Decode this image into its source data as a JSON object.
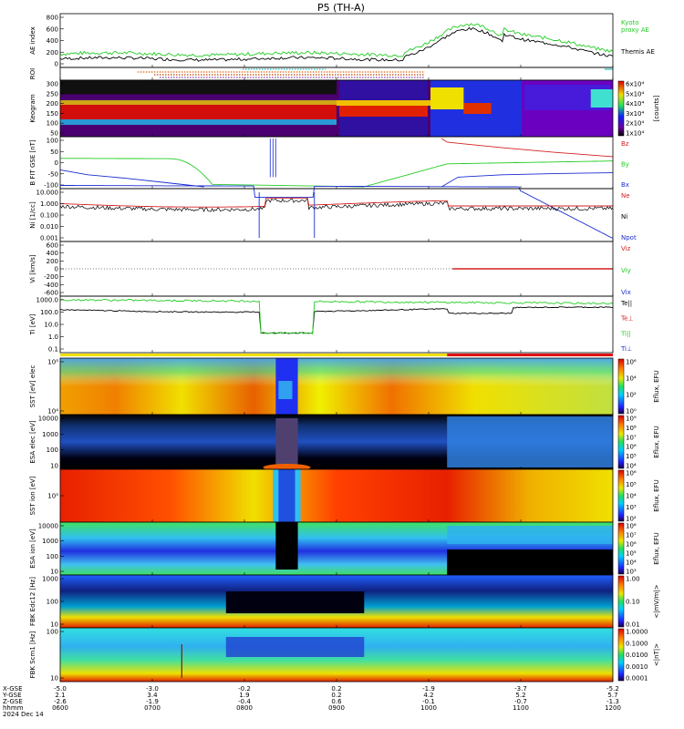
{
  "title": "P5 (TH-A)",
  "chart_data": {
    "type": "line",
    "time_axis": {
      "ticks": [
        "0600",
        "0700",
        "0800",
        "0900",
        "1000",
        "1100",
        "1200"
      ],
      "date": "2024 Dec 14",
      "rows": [
        {
          "label": "X-GSE",
          "values": [
            "-5.0",
            "-3.0",
            "-0.2",
            "0.2",
            "-1.9",
            "-3.7",
            "-5.2"
          ]
        },
        {
          "label": "Y-GSE",
          "values": [
            "2.1",
            "3.4",
            "1.9",
            "0.2",
            "4.2",
            "5.2",
            "5.7"
          ]
        },
        {
          "label": "Z-GSE",
          "values": [
            "-2.6",
            "-1.9",
            "-0.4",
            "0.6",
            "-0.1",
            "-0.7",
            "-1.3"
          ]
        },
        {
          "label": "hhmm",
          "values": [
            "0600",
            "0700",
            "0800",
            "0900",
            "1000",
            "1100",
            "1200"
          ]
        }
      ]
    },
    "panels": [
      {
        "id": "ae",
        "ylabel": "AE index",
        "yticks": [
          "0",
          "200",
          "400",
          "600",
          "800"
        ],
        "series": [
          {
            "name": "Kyoto proxy AE",
            "color": "#22cc22"
          },
          {
            "name": "Themis AE",
            "color": "#000000"
          }
        ]
      },
      {
        "id": "roi",
        "ylabel": "ROI"
      },
      {
        "id": "keogram",
        "ylabel": "Keogram",
        "yticks": [
          "50",
          "100",
          "150",
          "200",
          "250",
          "300"
        ],
        "colorbar": {
          "label": "[counts]",
          "ticks": [
            "1x10⁴",
            "2x10⁴",
            "3x10⁴",
            "4x10⁴",
            "5x10⁴",
            "6x10⁴"
          ]
        }
      },
      {
        "id": "bfield",
        "ylabel": "B FIT GSE [nT]",
        "yticks": [
          "-100",
          "-50",
          "0",
          "50",
          "100"
        ],
        "series": [
          {
            "name": "Bz",
            "color": "#d42020"
          },
          {
            "name": "By",
            "color": "#22cc22"
          },
          {
            "name": "Bx",
            "color": "#1a2cd0"
          }
        ]
      },
      {
        "id": "density",
        "ylabel": "Ni [1/cc]",
        "yticks": [
          "0.001",
          "0.010",
          "0.100",
          "1.000",
          "10.000"
        ],
        "series": [
          {
            "name": "Ne",
            "color": "#d42020"
          },
          {
            "name": "Ni",
            "color": "#000000"
          },
          {
            "name": "Npot",
            "color": "#1a2cd0"
          }
        ]
      },
      {
        "id": "velocity",
        "ylabel": "Vi [km/s]",
        "yticks": [
          "-600",
          "-400",
          "-200",
          "0",
          "200",
          "400",
          "600"
        ],
        "series": [
          {
            "name": "Viz",
            "color": "#d42020"
          },
          {
            "name": "Viy",
            "color": "#22cc22"
          },
          {
            "name": "Vix",
            "color": "#1a2cd0"
          }
        ]
      },
      {
        "id": "temp",
        "ylabel": "Ti [eV]",
        "yticks": [
          "0.1",
          "1.0",
          "10.0",
          "100.0",
          "1000.0"
        ],
        "series": [
          {
            "name": "Te||",
            "color": "#000000"
          },
          {
            "name": "Te⊥",
            "color": "#d42020"
          },
          {
            "name": "Ti||",
            "color": "#22cc22"
          },
          {
            "name": "Ti⊥",
            "color": "#1a2cd0"
          }
        ]
      },
      {
        "id": "sst_e",
        "ylabel": "SST [eV] elec",
        "yticks": [
          "10⁴",
          "10⁵"
        ],
        "colorbar": {
          "label": "Eflux, EFU",
          "ticks": [
            "10⁰",
            "10²",
            "10⁴",
            "10⁶"
          ]
        }
      },
      {
        "id": "esa_e",
        "ylabel": "ESA elec [eV]",
        "yticks": [
          "10",
          "100",
          "1000",
          "10000"
        ],
        "colorbar": {
          "label": "Eflux, EFU",
          "ticks": [
            "10⁴",
            "10⁵",
            "10⁶",
            "10⁷",
            "10⁸",
            "10⁹"
          ]
        }
      },
      {
        "id": "sst_i",
        "ylabel": "SST ion [eV]",
        "yticks": [
          "10⁵"
        ],
        "colorbar": {
          "label": "Eflux, EFU",
          "ticks": [
            "10²",
            "10³",
            "10⁴",
            "10⁵",
            "10⁶"
          ]
        }
      },
      {
        "id": "esa_i",
        "ylabel": "ESA ion [eV]",
        "yticks": [
          "10",
          "100",
          "1000",
          "10000"
        ],
        "colorbar": {
          "label": "Eflux, EFU",
          "ticks": [
            "10³",
            "10⁴",
            "10⁵",
            "10⁶",
            "10⁷",
            "10⁸"
          ]
        }
      },
      {
        "id": "fbk_e",
        "ylabel": "FBK Edc12 [Hz]",
        "yticks": [
          "10",
          "100",
          "1000"
        ],
        "colorbar": {
          "label": "<|mV/m|>",
          "ticks": [
            "0.01",
            "0.10",
            "1.00"
          ]
        }
      },
      {
        "id": "fbk_b",
        "ylabel": "FBK Scm1 [Hz]",
        "yticks": [
          "10",
          "100"
        ],
        "colorbar": {
          "label": "<|nT|>",
          "ticks": [
            "0.0001",
            "0.0010",
            "0.0100",
            "0.1000",
            "1.0000"
          ]
        }
      }
    ]
  },
  "colors": {
    "red": "#d42020",
    "green": "#22cc22",
    "blue": "#1a2cd0",
    "black": "#000000"
  }
}
